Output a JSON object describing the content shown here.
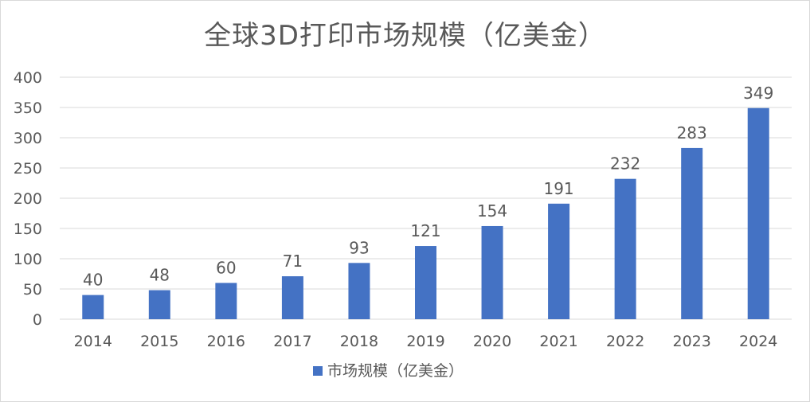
{
  "chart_data": {
    "type": "bar",
    "title": "全球3D打印市场规模（亿美金）",
    "categories": [
      "2014",
      "2015",
      "2016",
      "2017",
      "2018",
      "2019",
      "2020",
      "2021",
      "2022",
      "2023",
      "2024"
    ],
    "series": [
      {
        "name": "市场规模（亿美金）",
        "values": [
          40,
          48,
          60,
          71,
          93,
          121,
          154,
          191,
          232,
          283,
          349
        ]
      }
    ],
    "yticks": [
      "0",
      "50",
      "100",
      "150",
      "200",
      "250",
      "300",
      "350",
      "400"
    ],
    "ylim": [
      0,
      400
    ],
    "grid": true,
    "legend_position": "bottom",
    "data_labels": true,
    "colors": {
      "bar": "#4472c4",
      "grid": "#d9d9d9",
      "text": "#595959"
    }
  }
}
